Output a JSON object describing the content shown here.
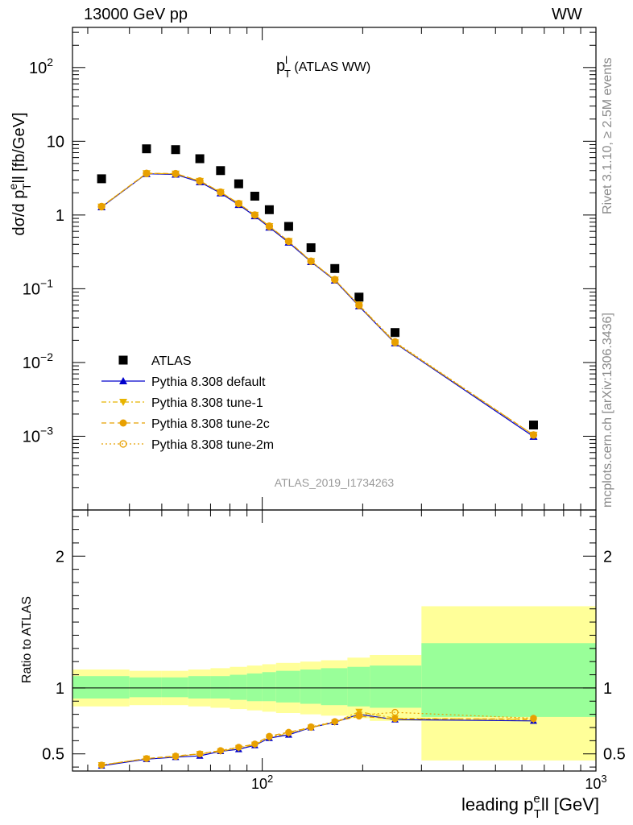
{
  "header": {
    "left_label": "13000 GeV pp",
    "right_label": "WW"
  },
  "side_labels": {
    "rivet": "Rivet 3.1.10, ≥ 2.5M events",
    "mcplots": "mcplots.cern.ch [arXiv:1306.3436]"
  },
  "chart_data": [
    {
      "panel": "main",
      "type": "scatter",
      "title": "p_T^l (ATLAS WW)",
      "ylabel": "dσ/d p_T^ell [fb/GeV]",
      "xscale": "log",
      "yscale": "log",
      "xlim": [
        27,
        1000
      ],
      "ylim": [
        0.0001,
        350
      ],
      "watermark": "ATLAS_2019_I1734263",
      "legend_position": "bottom-left",
      "x": [
        33,
        45,
        55,
        65,
        75,
        85,
        95,
        105,
        120,
        140,
        165,
        195,
        250,
        650
      ],
      "series": [
        {
          "name": "ATLAS",
          "marker": "square",
          "color": "#000000",
          "values": [
            3.1,
            7.9,
            7.7,
            5.8,
            4.0,
            2.65,
            1.8,
            1.18,
            0.7,
            0.36,
            0.188,
            0.077,
            0.0255,
            0.00142
          ]
        },
        {
          "name": "Pythia 8.308 default",
          "marker": "triangle-up",
          "line": "solid",
          "color": "#0000cc",
          "values": [
            1.28,
            3.62,
            3.55,
            2.8,
            1.98,
            1.38,
            0.97,
            0.68,
            0.425,
            0.232,
            0.13,
            0.058,
            0.0183,
            0.00099
          ]
        },
        {
          "name": "Pythia 8.308 tune-1",
          "marker": "triangle-down",
          "line": "dashdot",
          "color": "#e8b400",
          "values": [
            1.29,
            3.66,
            3.62,
            2.88,
            2.03,
            1.42,
            1.0,
            0.7,
            0.44,
            0.235,
            0.132,
            0.06,
            0.0186,
            0.00104
          ]
        },
        {
          "name": "Pythia 8.308 tune-2c",
          "marker": "circle",
          "line": "dashed",
          "color": "#e8a000",
          "values": [
            1.3,
            3.68,
            3.65,
            2.9,
            2.05,
            1.43,
            1.0,
            0.71,
            0.44,
            0.237,
            0.133,
            0.059,
            0.0186,
            0.00104
          ]
        },
        {
          "name": "Pythia 8.308 tune-2m",
          "marker": "open-circle",
          "line": "dotted",
          "color": "#e8a000",
          "values": [
            1.3,
            3.66,
            3.62,
            2.88,
            2.04,
            1.43,
            1.0,
            0.7,
            0.44,
            0.236,
            0.133,
            0.06,
            0.019,
            0.00104
          ]
        }
      ]
    },
    {
      "panel": "ratio",
      "type": "line",
      "xlabel": "leading p_T^ell [GeV]",
      "ylabel": "Ratio to ATLAS",
      "xscale": "log",
      "xlim": [
        27,
        1000
      ],
      "ylim": [
        0.37,
        2.35
      ],
      "yticks": [
        0.5,
        1,
        2
      ],
      "xticks": [
        100,
        1000
      ],
      "bins": [
        27,
        40,
        50,
        60,
        70,
        80,
        90,
        100,
        110,
        130,
        150,
        180,
        210,
        300,
        1000
      ],
      "band_inner": {
        "color": "#99ff99",
        "low": [
          0.92,
          0.93,
          0.93,
          0.92,
          0.92,
          0.91,
          0.9,
          0.9,
          0.89,
          0.88,
          0.87,
          0.86,
          0.85,
          0.78
        ],
        "high": [
          1.09,
          1.08,
          1.08,
          1.09,
          1.09,
          1.1,
          1.11,
          1.12,
          1.13,
          1.14,
          1.15,
          1.16,
          1.17,
          1.34
        ]
      },
      "band_outer": {
        "color": "#ffff99",
        "low": [
          0.86,
          0.87,
          0.87,
          0.86,
          0.85,
          0.84,
          0.83,
          0.82,
          0.81,
          0.8,
          0.79,
          0.77,
          0.75,
          0.45
        ],
        "high": [
          1.14,
          1.13,
          1.13,
          1.14,
          1.15,
          1.16,
          1.17,
          1.18,
          1.19,
          1.2,
          1.21,
          1.23,
          1.25,
          1.62
        ]
      },
      "x": [
        33,
        45,
        55,
        65,
        75,
        85,
        95,
        105,
        120,
        140,
        165,
        195,
        250,
        650
      ],
      "series": [
        {
          "name": "Pythia 8.308 default",
          "marker": "triangle-up",
          "line": "solid",
          "color": "#0000cc",
          "values": [
            0.41,
            0.46,
            0.475,
            0.485,
            0.52,
            0.535,
            0.565,
            0.62,
            0.645,
            0.7,
            0.74,
            0.8,
            0.76,
            0.75
          ]
        },
        {
          "name": "Pythia 8.308 tune-1",
          "marker": "triangle-down",
          "line": "dashdot",
          "color": "#e8b400",
          "values": [
            0.415,
            0.465,
            0.48,
            0.5,
            0.52,
            0.545,
            0.57,
            0.625,
            0.655,
            0.7,
            0.74,
            0.82,
            0.77,
            0.76
          ]
        },
        {
          "name": "Pythia 8.308 tune-2c",
          "marker": "circle",
          "line": "dashed",
          "color": "#e8a000",
          "values": [
            0.415,
            0.465,
            0.485,
            0.5,
            0.525,
            0.55,
            0.575,
            0.635,
            0.665,
            0.7,
            0.745,
            0.785,
            0.765,
            0.765
          ]
        },
        {
          "name": "Pythia 8.308 tune-2m",
          "marker": "open-circle",
          "line": "dotted",
          "color": "#e8a000",
          "values": [
            0.415,
            0.465,
            0.48,
            0.5,
            0.525,
            0.55,
            0.575,
            0.63,
            0.66,
            0.705,
            0.745,
            0.795,
            0.815,
            0.77
          ]
        }
      ]
    }
  ]
}
